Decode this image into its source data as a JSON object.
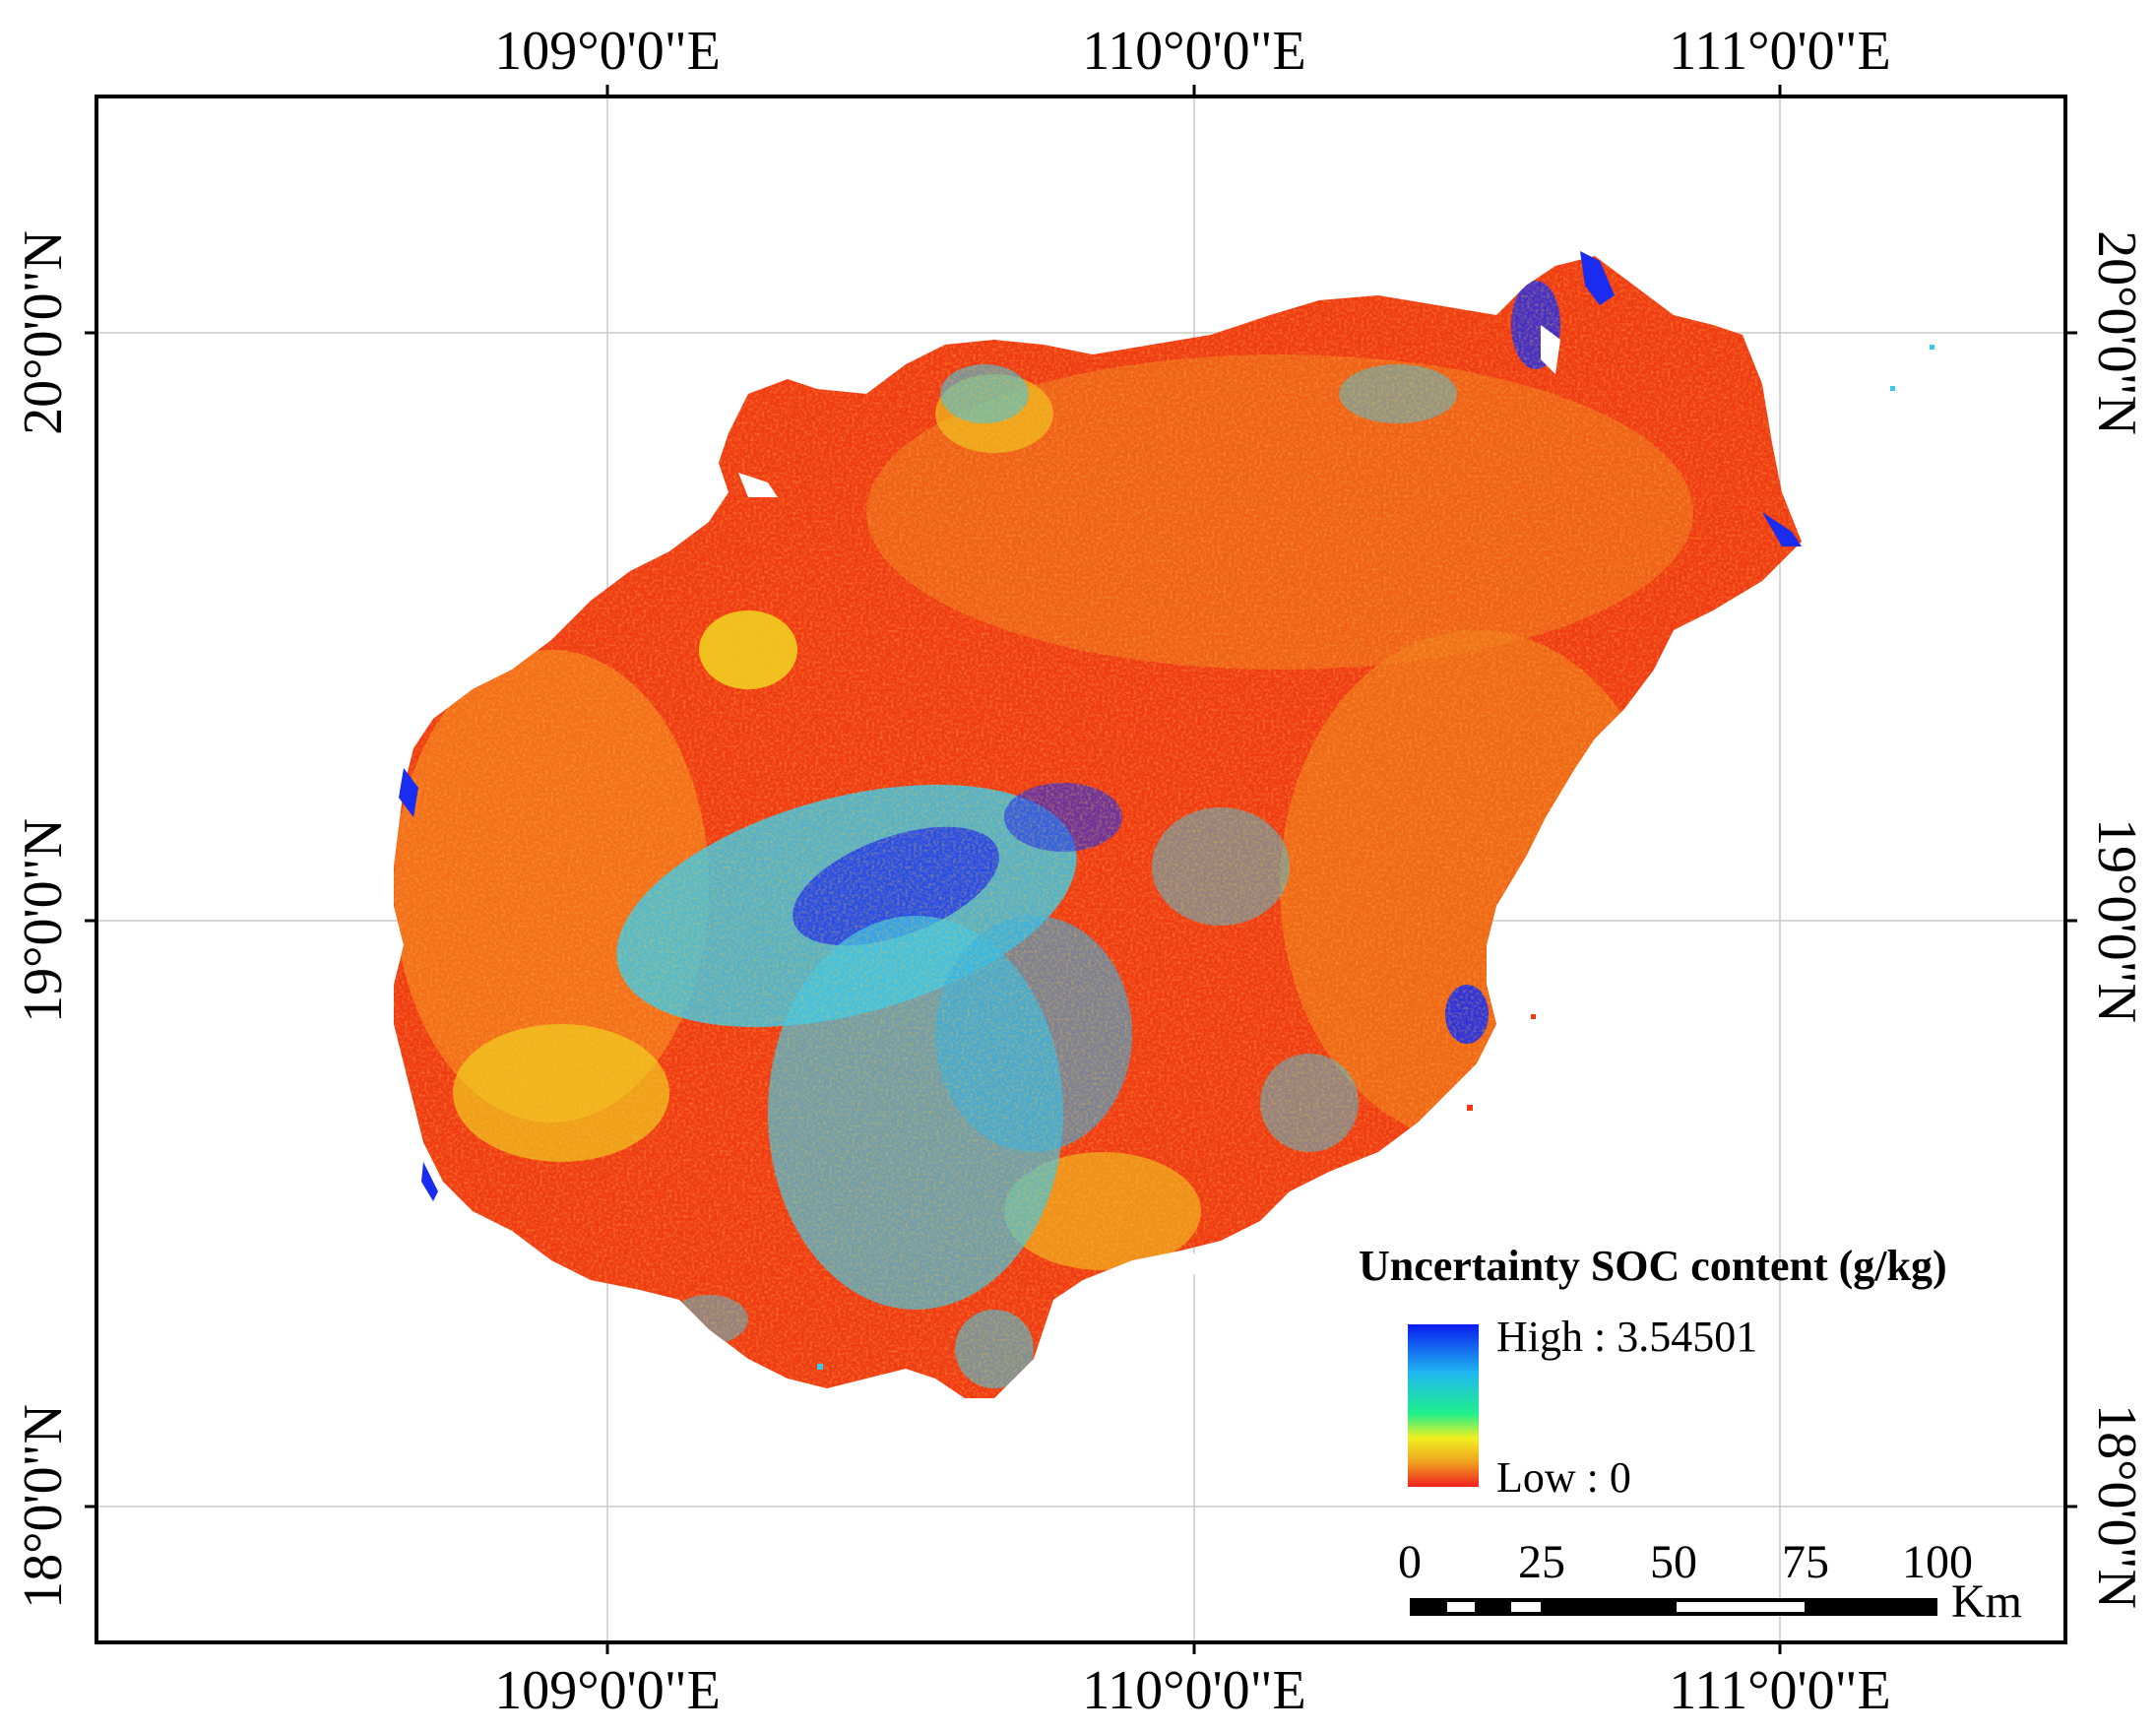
{
  "map": {
    "top_labels": [
      "109°0'0\"E",
      "110°0'0\"E",
      "111°0'0\"E"
    ],
    "bottom_labels": [
      "109°0'0\"E",
      "110°0'0\"E",
      "111°0'0\"E"
    ],
    "left_labels": [
      "20°0'0\"N",
      "19°0'0\"N",
      "18°0'0\"N"
    ],
    "right_labels": [
      "20°0'0\"N",
      "19°0'0\"N",
      "18°0'0\"N"
    ]
  },
  "legend": {
    "title": "Uncertainty  SOC content (g/kg)",
    "high_label": "High : 3.54501",
    "low_label": "Low : 0",
    "colors": [
      "#0a1cf0",
      "#1fb8f0",
      "#1ff08a",
      "#f0f01f",
      "#f0a01f",
      "#f01f1f"
    ]
  },
  "scale_bar": {
    "ticks": [
      "0",
      "25",
      "50",
      "75",
      "100"
    ],
    "unit": "Km"
  },
  "colors": {
    "high": "#1a2cf0",
    "mid": "#3cc8e8",
    "low": "#f03a14",
    "low_alt": "#f58a1e",
    "mid_low": "#f0e21e"
  }
}
